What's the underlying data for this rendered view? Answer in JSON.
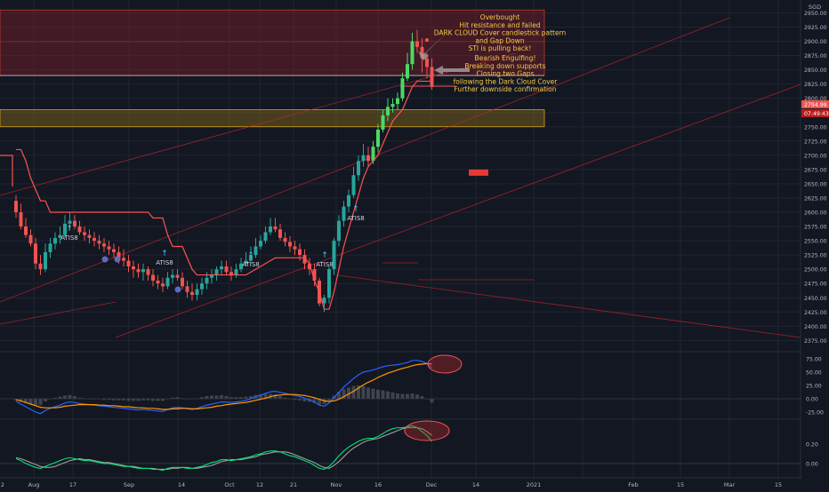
{
  "colors": {
    "background": "#131722",
    "grid": "#1f2430",
    "up": "#26a69a",
    "down": "#ef5350",
    "bright_up": "#4cd964",
    "supertrend": "#ff5252",
    "resistance_zone": "#7a1f2a",
    "support_zone": "#8a6a1a",
    "annotation": "#f7c948",
    "axis_text": "#b2b5be",
    "last_price_tag": "#ef5350",
    "macd_blue": "#2962ff",
    "macd_orange": "#ff9800",
    "stoch_green": "#00e676",
    "stoch_pink": "#ff4081"
  },
  "currency": "SGD",
  "price_ticks": [
    "2950.00",
    "2925.00",
    "2900.00",
    "2875.00",
    "2850.00",
    "2825.00",
    "2800.00",
    "2775.00",
    "2750.00",
    "2725.00",
    "2700.00",
    "2675.00",
    "2650.00",
    "2625.00",
    "2600.00",
    "2575.00",
    "2550.00",
    "2525.00",
    "2500.00",
    "2475.00",
    "2450.00",
    "2425.00",
    "2400.00",
    "2375.00"
  ],
  "last_price_label": "2794.99",
  "countdown_label": "07:49:43",
  "macd_ticks": [
    "75.00",
    "50.00",
    "25.00",
    "0.00",
    "-25.00"
  ],
  "stoch_ticks": [
    "0.20",
    "0.00"
  ],
  "time_labels": [
    "2",
    "Aug",
    "17",
    "Sep",
    "14",
    "Oct",
    "12",
    "21",
    "Nov",
    "16",
    "Dec",
    "14",
    "2021",
    "Feb",
    "15",
    "Mar",
    "15"
  ],
  "annotations": {
    "top": [
      "Overbought",
      "Hit resistance and failed",
      "DARK CLOUD Cover candlestick pattern",
      "and Gap Down",
      "STI is pulling back!"
    ],
    "bottom": [
      "Bearish Engulfing!",
      "Breaking down supports",
      "Closing two Gaps",
      "following the Dark Cloud Cover",
      "Further downside confirmation"
    ]
  },
  "signals": [
    {
      "label": "ATIS8"
    },
    {
      "label": "ATIS8"
    },
    {
      "label": "ATIS8"
    },
    {
      "label": "ATIS8"
    },
    {
      "label": "ATIS8"
    }
  ],
  "chart_data": {
    "type": "candlestick",
    "x": [
      "Jul-31",
      "Aug-03",
      "Aug-04",
      "Aug-05",
      "Aug-06",
      "Aug-07",
      "Aug-10",
      "Aug-11",
      "Aug-12",
      "Aug-13",
      "Aug-14",
      "Aug-17",
      "Aug-18",
      "Aug-19",
      "Aug-20",
      "Aug-21",
      "Aug-24",
      "Aug-25",
      "Aug-26",
      "Aug-27",
      "Aug-28",
      "Sep-01",
      "Sep-02",
      "Sep-03",
      "Sep-04",
      "Sep-07",
      "Sep-08",
      "Sep-09",
      "Sep-10",
      "Sep-11",
      "Sep-14",
      "Sep-15",
      "Sep-16",
      "Sep-17",
      "Sep-18",
      "Sep-21",
      "Sep-22",
      "Sep-23",
      "Sep-24",
      "Sep-25",
      "Sep-28",
      "Sep-29",
      "Sep-30",
      "Oct-01",
      "Oct-02",
      "Oct-05",
      "Oct-06",
      "Oct-07",
      "Oct-08",
      "Oct-09",
      "Oct-12",
      "Oct-13",
      "Oct-14",
      "Oct-15",
      "Oct-16",
      "Oct-19",
      "Oct-20",
      "Oct-21",
      "Oct-22",
      "Oct-23",
      "Oct-26",
      "Oct-27",
      "Oct-28",
      "Oct-29",
      "Oct-30",
      "Nov-02",
      "Nov-03",
      "Nov-04",
      "Nov-05",
      "Nov-06",
      "Nov-09",
      "Nov-10",
      "Nov-11",
      "Nov-12",
      "Nov-13",
      "Nov-16",
      "Nov-17",
      "Nov-18",
      "Nov-19",
      "Nov-20",
      "Nov-23",
      "Nov-24",
      "Nov-25",
      "Nov-26",
      "Nov-27",
      "Nov-30"
    ],
    "open": [
      2620,
      2600,
      2575,
      2560,
      2545,
      2510,
      2500,
      2530,
      2545,
      2555,
      2560,
      2580,
      2585,
      2575,
      2565,
      2560,
      2555,
      2550,
      2545,
      2540,
      2535,
      2530,
      2520,
      2515,
      2505,
      2500,
      2495,
      2500,
      2490,
      2480,
      2475,
      2470,
      2485,
      2490,
      2485,
      2470,
      2460,
      2455,
      2465,
      2475,
      2485,
      2490,
      2500,
      2505,
      2495,
      2490,
      2500,
      2510,
      2515,
      2525,
      2540,
      2550,
      2565,
      2575,
      2570,
      2555,
      2548,
      2540,
      2535,
      2525,
      2510,
      2500,
      2480,
      2440,
      2450,
      2500,
      2550,
      2585,
      2610,
      2630,
      2665,
      2690,
      2700,
      2690,
      2715,
      2745,
      2770,
      2785,
      2790,
      2800,
      2835,
      2860,
      2900,
      2890,
      2870,
      2855
    ],
    "high": [
      2630,
      2615,
      2590,
      2570,
      2555,
      2525,
      2545,
      2555,
      2565,
      2575,
      2595,
      2600,
      2595,
      2585,
      2575,
      2570,
      2565,
      2560,
      2555,
      2550,
      2545,
      2540,
      2535,
      2525,
      2515,
      2510,
      2510,
      2505,
      2500,
      2490,
      2485,
      2495,
      2500,
      2500,
      2495,
      2480,
      2475,
      2475,
      2485,
      2495,
      2500,
      2505,
      2515,
      2515,
      2505,
      2510,
      2520,
      2530,
      2540,
      2555,
      2560,
      2575,
      2590,
      2590,
      2580,
      2565,
      2558,
      2550,
      2545,
      2535,
      2520,
      2510,
      2485,
      2455,
      2505,
      2555,
      2595,
      2620,
      2640,
      2680,
      2700,
      2720,
      2715,
      2725,
      2755,
      2780,
      2800,
      2800,
      2810,
      2845,
      2880,
      2915,
      2920,
      2905,
      2880,
      2870
    ],
    "low": [
      2590,
      2570,
      2555,
      2540,
      2500,
      2490,
      2495,
      2520,
      2535,
      2545,
      2555,
      2570,
      2570,
      2560,
      2550,
      2545,
      2540,
      2535,
      2530,
      2525,
      2520,
      2510,
      2505,
      2495,
      2485,
      2485,
      2480,
      2480,
      2470,
      2465,
      2460,
      2465,
      2475,
      2480,
      2465,
      2450,
      2445,
      2445,
      2455,
      2465,
      2475,
      2480,
      2490,
      2490,
      2480,
      2485,
      2495,
      2505,
      2510,
      2520,
      2535,
      2545,
      2560,
      2565,
      2550,
      2540,
      2530,
      2525,
      2515,
      2500,
      2490,
      2470,
      2435,
      2425,
      2440,
      2490,
      2540,
      2575,
      2600,
      2625,
      2655,
      2680,
      2680,
      2685,
      2705,
      2740,
      2760,
      2775,
      2780,
      2795,
      2830,
      2850,
      2880,
      2845,
      2835,
      2815
    ],
    "close": [
      2600,
      2575,
      2560,
      2545,
      2510,
      2500,
      2530,
      2545,
      2555,
      2560,
      2580,
      2585,
      2575,
      2565,
      2560,
      2555,
      2550,
      2545,
      2540,
      2535,
      2530,
      2520,
      2515,
      2505,
      2500,
      2495,
      2500,
      2490,
      2480,
      2475,
      2470,
      2485,
      2490,
      2485,
      2470,
      2460,
      2455,
      2465,
      2475,
      2485,
      2490,
      2500,
      2505,
      2495,
      2490,
      2500,
      2510,
      2515,
      2525,
      2540,
      2550,
      2565,
      2575,
      2570,
      2555,
      2548,
      2540,
      2535,
      2525,
      2510,
      2500,
      2480,
      2440,
      2450,
      2500,
      2550,
      2585,
      2610,
      2630,
      2665,
      2690,
      2700,
      2690,
      2715,
      2745,
      2770,
      2785,
      2790,
      2800,
      2835,
      2860,
      2900,
      2890,
      2870,
      2855,
      2820
    ],
    "supertrend": [
      2710,
      2710,
      2690,
      2660,
      2640,
      2620,
      2620,
      2600,
      2600,
      2600,
      2600,
      2600,
      2600,
      2600,
      2600,
      2600,
      2600,
      2600,
      2600,
      2600,
      2600,
      2600,
      2600,
      2600,
      2600,
      2600,
      2600,
      2600,
      2590,
      2590,
      2590,
      2560,
      2540,
      2540,
      2540,
      2520,
      2500,
      2490,
      2490,
      2490,
      2490,
      2490,
      2490,
      2490,
      2490,
      2490,
      2490,
      2490,
      2495,
      2500,
      2505,
      2510,
      2515,
      2520,
      2520,
      2520,
      2520,
      2520,
      2520,
      2520,
      2510,
      2480,
      2460,
      2430,
      2430,
      2460,
      2500,
      2540,
      2570,
      2600,
      2630,
      2660,
      2680,
      2690,
      2700,
      2720,
      2740,
      2760,
      2770,
      2780,
      2800,
      2820,
      2830,
      2830,
      2830,
      2830
    ],
    "resistance_zone": [
      2840,
      2955
    ],
    "support_zone": [
      2750,
      2780
    ],
    "price_range": [
      2360,
      2960
    ],
    "macd": {
      "macd": [
        -5,
        -10,
        -15,
        -20,
        -25,
        -28,
        -22,
        -18,
        -15,
        -12,
        -8,
        -6,
        -7,
        -9,
        -10,
        -11,
        -12,
        -13,
        -14,
        -15,
        -16,
        -17,
        -18,
        -19,
        -20,
        -21,
        -20,
        -21,
        -22,
        -23,
        -24,
        -20,
        -17,
        -16,
        -17,
        -19,
        -20,
        -18,
        -15,
        -12,
        -10,
        -8,
        -6,
        -6,
        -7,
        -6,
        -5,
        -3,
        0,
        4,
        7,
        10,
        13,
        14,
        12,
        10,
        8,
        6,
        4,
        1,
        -2,
        -6,
        -12,
        -14,
        -8,
        2,
        12,
        22,
        30,
        38,
        45,
        50,
        52,
        54,
        57,
        60,
        62,
        63,
        64,
        66,
        68,
        72,
        72,
        70,
        66,
        58
      ],
      "signal": [
        -2,
        -4,
        -7,
        -10,
        -13,
        -16,
        -17,
        -17,
        -17,
        -16,
        -14,
        -13,
        -12,
        -11,
        -11,
        -11,
        -11,
        -12,
        -12,
        -13,
        -13,
        -14,
        -15,
        -15,
        -16,
        -17,
        -17,
        -18,
        -18,
        -19,
        -20,
        -20,
        -19,
        -19,
        -18,
        -18,
        -19,
        -19,
        -18,
        -17,
        -16,
        -14,
        -13,
        -11,
        -10,
        -9,
        -8,
        -7,
        -5,
        -3,
        -1,
        1,
        4,
        6,
        7,
        8,
        8,
        8,
        7,
        6,
        4,
        2,
        -1,
        -4,
        -5,
        -4,
        -1,
        4,
        9,
        14,
        20,
        26,
        31,
        35,
        40,
        44,
        48,
        51,
        54,
        57,
        59,
        62,
        64,
        65,
        66,
        65
      ],
      "range": [
        -35,
        85
      ]
    },
    "stochastic": {
      "k": [
        0.05,
        0.03,
        0.0,
        -0.02,
        -0.04,
        -0.05,
        -0.03,
        -0.01,
        0.01,
        0.03,
        0.05,
        0.06,
        0.05,
        0.04,
        0.03,
        0.03,
        0.02,
        0.01,
        0.0,
        0.0,
        -0.01,
        -0.02,
        -0.03,
        -0.03,
        -0.04,
        -0.05,
        -0.05,
        -0.05,
        -0.06,
        -0.06,
        -0.07,
        -0.05,
        -0.04,
        -0.04,
        -0.04,
        -0.05,
        -0.05,
        -0.04,
        -0.03,
        -0.01,
        0.01,
        0.02,
        0.04,
        0.04,
        0.03,
        0.04,
        0.05,
        0.06,
        0.07,
        0.09,
        0.1,
        0.12,
        0.13,
        0.13,
        0.12,
        0.1,
        0.08,
        0.07,
        0.05,
        0.03,
        0.01,
        -0.02,
        -0.05,
        -0.06,
        -0.03,
        0.02,
        0.08,
        0.13,
        0.17,
        0.2,
        0.23,
        0.25,
        0.26,
        0.26,
        0.28,
        0.31,
        0.34,
        0.36,
        0.37,
        0.37,
        0.38,
        0.39,
        0.37,
        0.33,
        0.29,
        0.23
      ],
      "d": [
        0.06,
        0.05,
        0.03,
        0.01,
        -0.01,
        -0.03,
        -0.04,
        -0.04,
        -0.03,
        -0.01,
        0.01,
        0.03,
        0.04,
        0.05,
        0.04,
        0.04,
        0.03,
        0.02,
        0.01,
        0.01,
        0.0,
        -0.01,
        -0.02,
        -0.03,
        -0.03,
        -0.04,
        -0.05,
        -0.05,
        -0.05,
        -0.06,
        -0.06,
        -0.06,
        -0.05,
        -0.05,
        -0.04,
        -0.04,
        -0.05,
        -0.05,
        -0.04,
        -0.03,
        -0.02,
        0.0,
        0.02,
        0.03,
        0.04,
        0.04,
        0.04,
        0.05,
        0.06,
        0.07,
        0.09,
        0.1,
        0.11,
        0.12,
        0.12,
        0.12,
        0.11,
        0.09,
        0.07,
        0.05,
        0.03,
        0.01,
        -0.02,
        -0.04,
        -0.05,
        -0.02,
        0.02,
        0.07,
        0.12,
        0.16,
        0.19,
        0.22,
        0.24,
        0.25,
        0.26,
        0.28,
        0.3,
        0.32,
        0.34,
        0.36,
        0.37,
        0.37,
        0.37,
        0.36,
        0.33,
        0.29
      ],
      "range": [
        -0.12,
        0.44
      ]
    }
  }
}
